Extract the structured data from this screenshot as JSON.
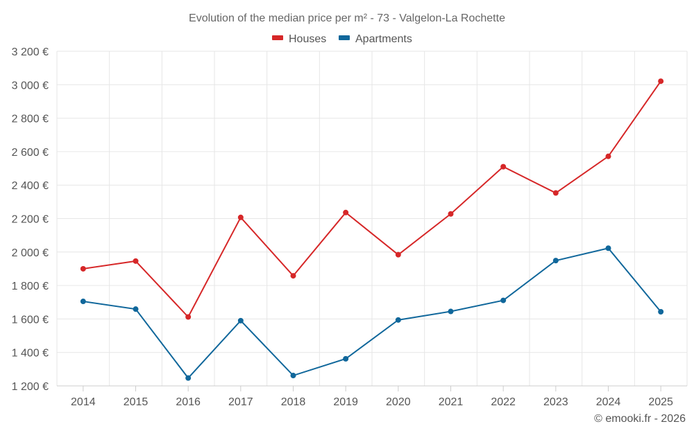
{
  "chart_data": {
    "type": "line",
    "title": "Evolution of the median price per m² - 73 - Valgelon-La Rochette",
    "categories": [
      "2014",
      "2015",
      "2016",
      "2017",
      "2018",
      "2019",
      "2020",
      "2021",
      "2022",
      "2023",
      "2024",
      "2025"
    ],
    "series": [
      {
        "name": "Houses",
        "color": "#d62728",
        "values": [
          1900,
          1946,
          1612,
          2207,
          1858,
          2236,
          1984,
          2228,
          2510,
          2353,
          2572,
          3021
        ]
      },
      {
        "name": "Apartments",
        "color": "#10679b",
        "values": [
          1705,
          1659,
          1247,
          1590,
          1262,
          1362,
          1594,
          1645,
          1711,
          1949,
          2023,
          1643
        ]
      }
    ],
    "ylim": [
      1200,
      3200
    ],
    "yticks": [
      1200,
      1400,
      1600,
      1800,
      2000,
      2200,
      2400,
      2600,
      2800,
      3000,
      3200
    ],
    "ytick_labels": [
      "1 200 €",
      "1 400 €",
      "1 600 €",
      "1 800 €",
      "2 000 €",
      "2 200 €",
      "2 400 €",
      "2 600 €",
      "2 800 €",
      "3 000 €",
      "3 200 €"
    ],
    "xlabel": "",
    "ylabel": "",
    "grid": true,
    "legend": "top-center"
  },
  "credit": "© emooki.fr - 2026"
}
